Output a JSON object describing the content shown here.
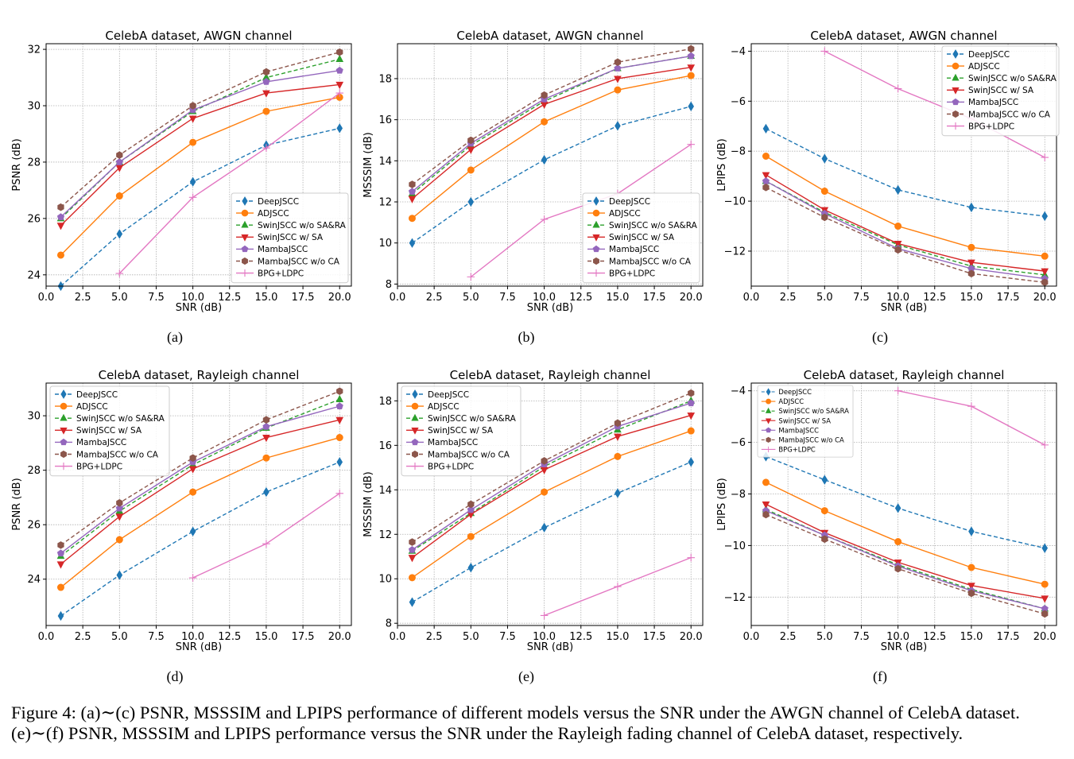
{
  "chart_data": [
    {
      "type": "line",
      "id": "a",
      "sublabel": "(a)",
      "title": "CelebA dataset, AWGN channel",
      "xlabel": "SNR (dB)",
      "ylabel": "PSNR (dB)",
      "xlim": [
        0,
        20.8
      ],
      "ylim": [
        23.6,
        32.2
      ],
      "xticks": [
        "0.0",
        "2.5",
        "5.0",
        "7.5",
        "10.0",
        "12.5",
        "15.0",
        "17.5",
        "20.0"
      ],
      "yticks": [
        "24",
        "26",
        "28",
        "30",
        "32"
      ],
      "legend_loc": "lower-right",
      "series": [
        {
          "name": "DeepJSCC",
          "x": [
            1,
            5,
            10,
            15,
            20
          ],
          "y": [
            23.6,
            25.45,
            27.3,
            28.6,
            29.2
          ]
        },
        {
          "name": "ADJSCC",
          "x": [
            1,
            5,
            10,
            15,
            20
          ],
          "y": [
            24.7,
            26.8,
            28.7,
            29.8,
            30.3
          ]
        },
        {
          "name": "SwinJSCC w/o SA&RA",
          "x": [
            1,
            5,
            10,
            15,
            20
          ],
          "y": [
            26.0,
            28.0,
            29.8,
            31.0,
            31.65
          ]
        },
        {
          "name": "SwinJSCC w/ SA",
          "x": [
            1,
            5,
            10,
            15,
            20
          ],
          "y": [
            25.75,
            27.8,
            29.55,
            30.45,
            30.75
          ]
        },
        {
          "name": "MambaJSCC",
          "x": [
            1,
            5,
            10,
            15,
            20
          ],
          "y": [
            26.05,
            28.0,
            29.85,
            30.85,
            31.25
          ]
        },
        {
          "name": "MambaJSCC w/o CA",
          "x": [
            1,
            5,
            10,
            15,
            20
          ],
          "y": [
            26.4,
            28.25,
            30.0,
            31.2,
            31.9
          ]
        },
        {
          "name": "BPG+LDPC",
          "x": [
            5,
            10,
            15,
            20
          ],
          "y": [
            24.05,
            26.75,
            28.5,
            30.45
          ]
        }
      ]
    },
    {
      "type": "line",
      "id": "b",
      "sublabel": "(b)",
      "title": "CelebA dataset, AWGN channel",
      "xlabel": "SNR (dB)",
      "ylabel": "MSSSIM (dB)",
      "xlim": [
        0,
        20.8
      ],
      "ylim": [
        7.9,
        19.7
      ],
      "xticks": [
        "0.0",
        "2.5",
        "5.0",
        "7.5",
        "10.0",
        "12.5",
        "15.0",
        "17.5",
        "20.0"
      ],
      "yticks": [
        "8",
        "10",
        "12",
        "14",
        "16",
        "18"
      ],
      "legend_loc": "lower-right",
      "series": [
        {
          "name": "DeepJSCC",
          "x": [
            1,
            5,
            10,
            15,
            20
          ],
          "y": [
            10.0,
            12.0,
            14.05,
            15.7,
            16.65
          ]
        },
        {
          "name": "ADJSCC",
          "x": [
            1,
            5,
            10,
            15,
            20
          ],
          "y": [
            11.2,
            13.55,
            15.9,
            17.45,
            18.15
          ]
        },
        {
          "name": "SwinJSCC w/o SA&RA",
          "x": [
            1,
            5,
            10,
            15,
            20
          ],
          "y": [
            12.4,
            14.75,
            16.9,
            18.5,
            19.1
          ]
        },
        {
          "name": "SwinJSCC w/ SA",
          "x": [
            1,
            5,
            10,
            15,
            20
          ],
          "y": [
            12.15,
            14.55,
            16.75,
            18.0,
            18.55
          ]
        },
        {
          "name": "MambaJSCC",
          "x": [
            1,
            5,
            10,
            15,
            20
          ],
          "y": [
            12.5,
            14.85,
            17.0,
            18.5,
            19.1
          ]
        },
        {
          "name": "MambaJSCC w/o CA",
          "x": [
            1,
            5,
            10,
            15,
            20
          ],
          "y": [
            12.85,
            15.0,
            17.2,
            18.8,
            19.45
          ]
        },
        {
          "name": "BPG+LDPC",
          "x": [
            5,
            10,
            15,
            20
          ],
          "y": [
            8.35,
            11.15,
            12.4,
            14.8
          ]
        }
      ]
    },
    {
      "type": "line",
      "id": "c",
      "sublabel": "(c)",
      "title": "CelebA dataset, AWGN channel",
      "xlabel": "SNR (dB)",
      "ylabel": "LPIPS (dB)",
      "xlim": [
        0,
        20.8
      ],
      "ylim": [
        -13.4,
        -3.7
      ],
      "xticks": [
        "0.0",
        "2.5",
        "5.0",
        "7.5",
        "10.0",
        "12.5",
        "15.0",
        "17.5",
        "20.0"
      ],
      "yticks": [
        "−12",
        "−10",
        "−8",
        "−6",
        "−4"
      ],
      "legend_loc": "upper-right",
      "series": [
        {
          "name": "DeepJSCC",
          "x": [
            1,
            5,
            10,
            15,
            20
          ],
          "y": [
            -7.1,
            -8.3,
            -9.55,
            -10.25,
            -10.6
          ]
        },
        {
          "name": "ADJSCC",
          "x": [
            1,
            5,
            10,
            15,
            20
          ],
          "y": [
            -8.2,
            -9.6,
            -11.0,
            -11.85,
            -12.2
          ]
        },
        {
          "name": "SwinJSCC w/o SA&RA",
          "x": [
            1,
            5,
            10,
            15,
            20
          ],
          "y": [
            -9.2,
            -10.45,
            -11.75,
            -12.6,
            -12.95
          ]
        },
        {
          "name": "SwinJSCC w/ SA",
          "x": [
            1,
            5,
            10,
            15,
            20
          ],
          "y": [
            -8.95,
            -10.35,
            -11.7,
            -12.45,
            -12.8
          ]
        },
        {
          "name": "MambaJSCC",
          "x": [
            1,
            5,
            10,
            15,
            20
          ],
          "y": [
            -9.2,
            -10.5,
            -11.9,
            -12.7,
            -13.1
          ]
        },
        {
          "name": "MambaJSCC w/o CA",
          "x": [
            1,
            5,
            10,
            15,
            20
          ],
          "y": [
            -9.45,
            -10.65,
            -11.95,
            -12.9,
            -13.25
          ]
        },
        {
          "name": "BPG+LDPC",
          "x": [
            5,
            10,
            15,
            20
          ],
          "y": [
            -4.0,
            -5.5,
            -6.7,
            -8.25
          ]
        }
      ]
    },
    {
      "type": "line",
      "id": "d",
      "sublabel": "(d)",
      "title": "CelebA dataset, Rayleigh channel",
      "xlabel": "SNR (dB)",
      "ylabel": "PSNR (dB)",
      "xlim": [
        0,
        20.8
      ],
      "ylim": [
        22.3,
        31.2
      ],
      "xticks": [
        "0.0",
        "2.5",
        "5.0",
        "7.5",
        "10.0",
        "12.5",
        "15.0",
        "17.5",
        "20.0"
      ],
      "yticks": [
        "24",
        "26",
        "28",
        "30"
      ],
      "legend_loc": "upper-left",
      "series": [
        {
          "name": "DeepJSCC",
          "x": [
            1,
            5,
            10,
            15,
            20
          ],
          "y": [
            22.65,
            24.15,
            25.75,
            27.2,
            28.3
          ]
        },
        {
          "name": "ADJSCC",
          "x": [
            1,
            5,
            10,
            15,
            20
          ],
          "y": [
            23.7,
            25.45,
            27.2,
            28.45,
            29.2
          ]
        },
        {
          "name": "SwinJSCC w/o SA&RA",
          "x": [
            1,
            5,
            10,
            15,
            20
          ],
          "y": [
            24.85,
            26.5,
            28.2,
            29.55,
            30.6
          ]
        },
        {
          "name": "SwinJSCC w/ SA",
          "x": [
            1,
            5,
            10,
            15,
            20
          ],
          "y": [
            24.55,
            26.3,
            28.05,
            29.2,
            29.85
          ]
        },
        {
          "name": "MambaJSCC",
          "x": [
            1,
            5,
            10,
            15,
            20
          ],
          "y": [
            24.95,
            26.6,
            28.3,
            29.6,
            30.35
          ]
        },
        {
          "name": "MambaJSCC w/o CA",
          "x": [
            1,
            5,
            10,
            15,
            20
          ],
          "y": [
            25.25,
            26.8,
            28.45,
            29.85,
            30.9
          ]
        },
        {
          "name": "BPG+LDPC",
          "x": [
            10,
            15,
            20
          ],
          "y": [
            24.05,
            25.3,
            27.15
          ]
        }
      ]
    },
    {
      "type": "line",
      "id": "e",
      "sublabel": "(e)",
      "title": "CelebA dataset, Rayleigh channel",
      "xlabel": "SNR (dB)",
      "ylabel": "MSSSIM (dB)",
      "xlim": [
        0,
        20.8
      ],
      "ylim": [
        7.9,
        18.8
      ],
      "xticks": [
        "0.0",
        "2.5",
        "5.0",
        "7.5",
        "10.0",
        "12.5",
        "15.0",
        "17.5",
        "20.0"
      ],
      "yticks": [
        "8",
        "10",
        "12",
        "14",
        "16",
        "18"
      ],
      "legend_loc": "upper-left",
      "series": [
        {
          "name": "DeepJSCC",
          "x": [
            1,
            5,
            10,
            15,
            20
          ],
          "y": [
            8.95,
            10.5,
            12.3,
            13.85,
            15.25
          ]
        },
        {
          "name": "ADJSCC",
          "x": [
            1,
            5,
            10,
            15,
            20
          ],
          "y": [
            10.05,
            11.9,
            13.9,
            15.5,
            16.65
          ]
        },
        {
          "name": "SwinJSCC w/o SA&RA",
          "x": [
            1,
            5,
            10,
            15,
            20
          ],
          "y": [
            11.25,
            12.95,
            15.05,
            16.7,
            18.0
          ]
        },
        {
          "name": "SwinJSCC w/ SA",
          "x": [
            1,
            5,
            10,
            15,
            20
          ],
          "y": [
            10.95,
            12.9,
            14.9,
            16.4,
            17.35
          ]
        },
        {
          "name": "MambaJSCC",
          "x": [
            1,
            5,
            10,
            15,
            20
          ],
          "y": [
            11.3,
            13.1,
            15.15,
            16.85,
            17.9
          ]
        },
        {
          "name": "MambaJSCC w/o CA",
          "x": [
            1,
            5,
            10,
            15,
            20
          ],
          "y": [
            11.65,
            13.35,
            15.3,
            17.0,
            18.35
          ]
        },
        {
          "name": "BPG+LDPC",
          "x": [
            10,
            15,
            20
          ],
          "y": [
            8.35,
            9.65,
            10.95
          ]
        }
      ]
    },
    {
      "type": "line",
      "id": "f",
      "sublabel": "(f)",
      "title": "CelebA dataset, Rayleigh channel",
      "xlabel": "SNR (dB)",
      "ylabel": "LPIPS (dB)",
      "xlim": [
        0,
        20.8
      ],
      "ylim": [
        -13.1,
        -3.7
      ],
      "xticks": [
        "0.0",
        "2.5",
        "5.0",
        "7.5",
        "10.0",
        "12.5",
        "15.0",
        "17.5",
        "20.0"
      ],
      "yticks": [
        "−12",
        "−10",
        "−8",
        "−6",
        "−4"
      ],
      "legend_loc": "upper-left",
      "series": [
        {
          "name": "DeepJSCC",
          "x": [
            1,
            5,
            10,
            15,
            20
          ],
          "y": [
            -6.55,
            -7.45,
            -8.55,
            -9.45,
            -10.1
          ]
        },
        {
          "name": "ADJSCC",
          "x": [
            1,
            5,
            10,
            15,
            20
          ],
          "y": [
            -7.55,
            -8.65,
            -9.85,
            -10.85,
            -11.5
          ]
        },
        {
          "name": "SwinJSCC w/o SA&RA",
          "x": [
            1,
            5,
            10,
            15,
            20
          ],
          "y": [
            -8.6,
            -9.6,
            -10.75,
            -11.7,
            -12.45
          ]
        },
        {
          "name": "SwinJSCC w/ SA",
          "x": [
            1,
            5,
            10,
            15,
            20
          ],
          "y": [
            -8.4,
            -9.5,
            -10.65,
            -11.55,
            -12.05
          ]
        },
        {
          "name": "MambaJSCC",
          "x": [
            1,
            5,
            10,
            15,
            20
          ],
          "y": [
            -8.65,
            -9.6,
            -10.8,
            -11.75,
            -12.45
          ]
        },
        {
          "name": "MambaJSCC w/o CA",
          "x": [
            1,
            5,
            10,
            15,
            20
          ],
          "y": [
            -8.8,
            -9.75,
            -10.9,
            -11.85,
            -12.65
          ]
        },
        {
          "name": "BPG+LDPC",
          "x": [
            10,
            15,
            20
          ],
          "y": [
            -4.0,
            -4.6,
            -6.1
          ]
        }
      ]
    }
  ],
  "series_styles": [
    {
      "name": "DeepJSCC",
      "color": "#1f77b4",
      "dash": "dashed",
      "marker": "diamond"
    },
    {
      "name": "ADJSCC",
      "color": "#ff7f0e",
      "dash": "solid",
      "marker": "circle"
    },
    {
      "name": "SwinJSCC w/o SA&RA",
      "color": "#2ca02c",
      "dash": "dashed",
      "marker": "triangle-up"
    },
    {
      "name": "SwinJSCC w/ SA",
      "color": "#d62728",
      "dash": "solid",
      "marker": "triangle-down"
    },
    {
      "name": "MambaJSCC",
      "color": "#9467bd",
      "dash": "solid",
      "marker": "pentagon"
    },
    {
      "name": "MambaJSCC w/o CA",
      "color": "#8c564b",
      "dash": "dashed",
      "marker": "hexagon"
    },
    {
      "name": "BPG+LDPC",
      "color": "#e377c2",
      "dash": "solid",
      "marker": "plus"
    }
  ],
  "caption": {
    "line1": "Figure 4: (a)∼(c) PSNR, MSSSIM and LPIPS performance of different models versus the SNR under the AWGN channel of CelebA dataset.",
    "line2": "(e)∼(f) PSNR, MSSSIM and LPIPS performance versus the SNR under the Rayleigh fading channel of CelebA dataset, respectively."
  }
}
